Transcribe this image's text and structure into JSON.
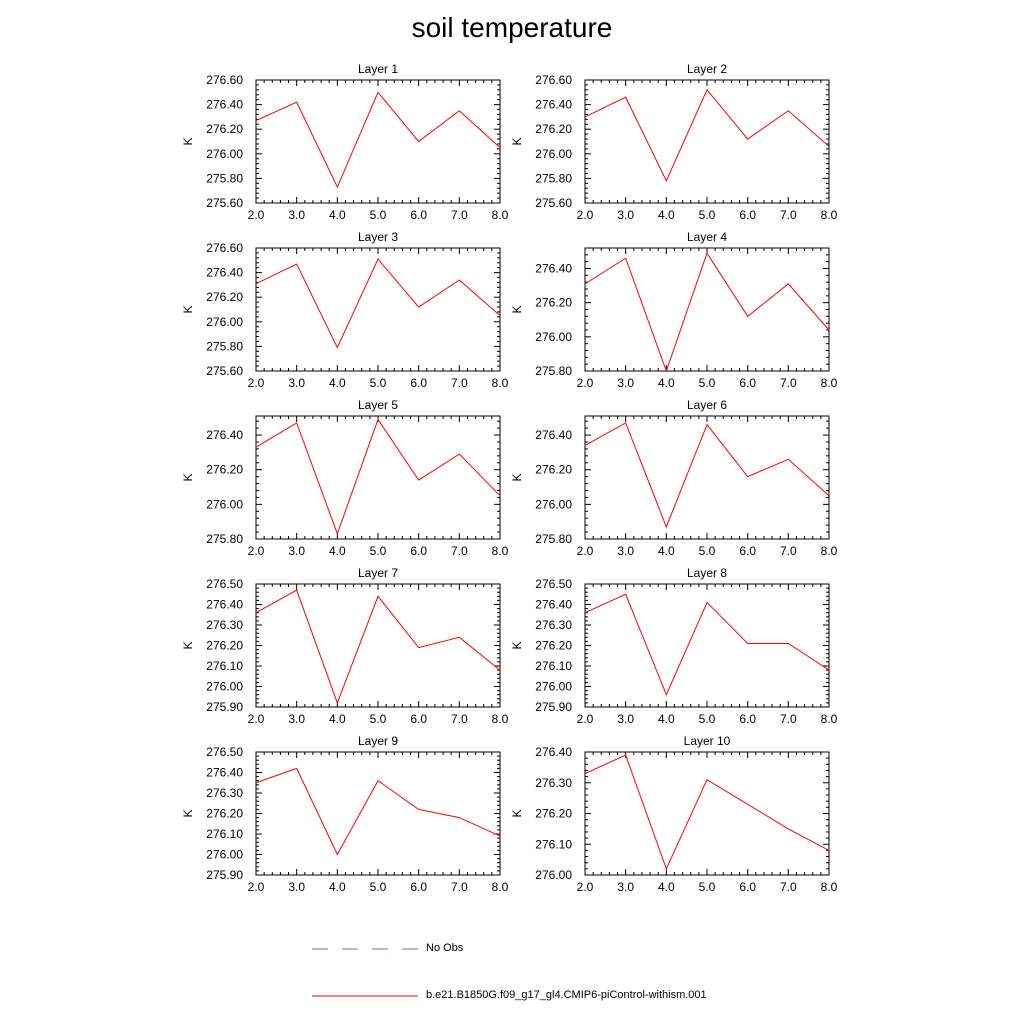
{
  "title": "soil temperature",
  "chart_data": [
    {
      "type": "line",
      "title": "Layer 1",
      "ylabel": "K",
      "x": [
        2,
        3,
        4,
        5,
        6,
        7,
        8
      ],
      "xticks": [
        "2.0",
        "3.0",
        "4.0",
        "5.0",
        "6.0",
        "7.0",
        "8.0"
      ],
      "ylim": [
        275.6,
        276.6
      ],
      "yticks": [
        "275.60",
        "275.80",
        "276.00",
        "276.20",
        "276.40",
        "276.60"
      ],
      "series": [
        {
          "values": [
            276.27,
            276.42,
            275.73,
            276.5,
            276.1,
            276.35,
            276.05
          ]
        }
      ]
    },
    {
      "type": "line",
      "title": "Layer 2",
      "ylabel": "K",
      "x": [
        2,
        3,
        4,
        5,
        6,
        7,
        8
      ],
      "xticks": [
        "2.0",
        "3.0",
        "4.0",
        "5.0",
        "6.0",
        "7.0",
        "8.0"
      ],
      "ylim": [
        275.6,
        276.6
      ],
      "yticks": [
        "275.60",
        "275.80",
        "276.00",
        "276.20",
        "276.40",
        "276.60"
      ],
      "series": [
        {
          "values": [
            276.3,
            276.46,
            275.78,
            276.52,
            276.12,
            276.35,
            276.06
          ]
        }
      ]
    },
    {
      "type": "line",
      "title": "Layer 3",
      "ylabel": "K",
      "x": [
        2,
        3,
        4,
        5,
        6,
        7,
        8
      ],
      "xticks": [
        "2.0",
        "3.0",
        "4.0",
        "5.0",
        "6.0",
        "7.0",
        "8.0"
      ],
      "ylim": [
        275.6,
        276.6
      ],
      "yticks": [
        "275.60",
        "275.80",
        "276.00",
        "276.20",
        "276.40",
        "276.60"
      ],
      "series": [
        {
          "values": [
            276.31,
            276.47,
            275.79,
            276.51,
            276.12,
            276.34,
            276.05
          ]
        }
      ]
    },
    {
      "type": "line",
      "title": "Layer 4",
      "ylabel": "K",
      "x": [
        2,
        3,
        4,
        5,
        6,
        7,
        8
      ],
      "xticks": [
        "2.0",
        "3.0",
        "4.0",
        "5.0",
        "6.0",
        "7.0",
        "8.0"
      ],
      "ylim": [
        275.8,
        276.52
      ],
      "yticks": [
        "275.80",
        "276.00",
        "276.20",
        "276.40"
      ],
      "series": [
        {
          "values": [
            276.31,
            276.46,
            275.8,
            276.49,
            276.12,
            276.31,
            276.04
          ]
        }
      ]
    },
    {
      "type": "line",
      "title": "Layer 5",
      "ylabel": "K",
      "x": [
        2,
        3,
        4,
        5,
        6,
        7,
        8
      ],
      "xticks": [
        "2.0",
        "3.0",
        "4.0",
        "5.0",
        "6.0",
        "7.0",
        "8.0"
      ],
      "ylim": [
        275.8,
        276.51
      ],
      "yticks": [
        "275.80",
        "276.00",
        "276.20",
        "276.40"
      ],
      "series": [
        {
          "values": [
            276.33,
            276.47,
            275.83,
            276.49,
            276.14,
            276.29,
            276.05
          ]
        }
      ]
    },
    {
      "type": "line",
      "title": "Layer 6",
      "ylabel": "K",
      "x": [
        2,
        3,
        4,
        5,
        6,
        7,
        8
      ],
      "xticks": [
        "2.0",
        "3.0",
        "4.0",
        "5.0",
        "6.0",
        "7.0",
        "8.0"
      ],
      "ylim": [
        275.8,
        276.51
      ],
      "yticks": [
        "275.80",
        "276.00",
        "276.20",
        "276.40"
      ],
      "series": [
        {
          "values": [
            276.34,
            276.47,
            275.87,
            276.46,
            276.16,
            276.26,
            276.05
          ]
        }
      ]
    },
    {
      "type": "line",
      "title": "Layer 7",
      "ylabel": "K",
      "x": [
        2,
        3,
        4,
        5,
        6,
        7,
        8
      ],
      "xticks": [
        "2.0",
        "3.0",
        "4.0",
        "5.0",
        "6.0",
        "7.0",
        "8.0"
      ],
      "ylim": [
        275.9,
        276.5
      ],
      "yticks": [
        "275.90",
        "276.00",
        "276.10",
        "276.20",
        "276.30",
        "276.40",
        "276.50"
      ],
      "series": [
        {
          "values": [
            276.36,
            276.47,
            275.92,
            276.44,
            276.19,
            276.24,
            276.08
          ]
        }
      ]
    },
    {
      "type": "line",
      "title": "Layer 8",
      "ylabel": "K",
      "x": [
        2,
        3,
        4,
        5,
        6,
        7,
        8
      ],
      "xticks": [
        "2.0",
        "3.0",
        "4.0",
        "5.0",
        "6.0",
        "7.0",
        "8.0"
      ],
      "ylim": [
        275.9,
        276.5
      ],
      "yticks": [
        "275.90",
        "276.00",
        "276.10",
        "276.20",
        "276.30",
        "276.40",
        "276.50"
      ],
      "series": [
        {
          "values": [
            276.36,
            276.45,
            275.96,
            276.41,
            276.21,
            276.21,
            276.08
          ]
        }
      ]
    },
    {
      "type": "line",
      "title": "Layer 9",
      "ylabel": "K",
      "x": [
        2,
        3,
        4,
        5,
        6,
        7,
        8
      ],
      "xticks": [
        "2.0",
        "3.0",
        "4.0",
        "5.0",
        "6.0",
        "7.0",
        "8.0"
      ],
      "ylim": [
        275.9,
        276.5
      ],
      "yticks": [
        "275.90",
        "276.00",
        "276.10",
        "276.20",
        "276.30",
        "276.40",
        "276.50"
      ],
      "series": [
        {
          "values": [
            276.35,
            276.42,
            276.0,
            276.36,
            276.22,
            276.18,
            276.09
          ]
        }
      ]
    },
    {
      "type": "line",
      "title": "Layer 10",
      "ylabel": "K",
      "x": [
        2,
        3,
        4,
        5,
        6,
        7,
        8
      ],
      "xticks": [
        "2.0",
        "3.0",
        "4.0",
        "5.0",
        "6.0",
        "7.0",
        "8.0"
      ],
      "ylim": [
        276.0,
        276.4
      ],
      "yticks": [
        "276.00",
        "276.10",
        "276.20",
        "276.30",
        "276.40"
      ],
      "series": [
        {
          "values": [
            276.33,
            276.39,
            276.02,
            276.31,
            276.23,
            276.15,
            276.08
          ]
        }
      ]
    }
  ],
  "legend": {
    "entries": [
      {
        "label": "No Obs",
        "color": "#6b6bd8",
        "style": "dashed"
      },
      {
        "label": "b.e21.B1850G.f09_g17_gl4.CMIP6-piControl-withism.001",
        "color": "#ff0000",
        "style": "solid"
      }
    ]
  }
}
